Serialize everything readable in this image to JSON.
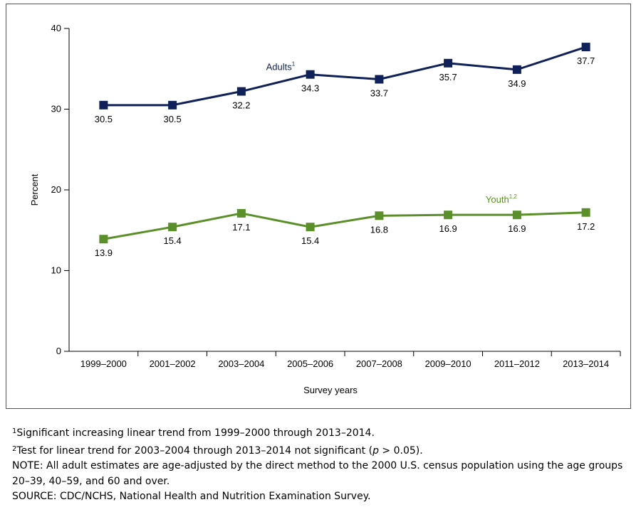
{
  "chart_data": {
    "type": "line",
    "categories": [
      "1999–2000",
      "2001–2002",
      "2003–2004",
      "2005–2006",
      "2007–2008",
      "2009–2010",
      "2011–2012",
      "2013–2014"
    ],
    "series": [
      {
        "name": "Adults",
        "superscript": "1",
        "color": "#0f2158",
        "values": [
          30.5,
          30.5,
          32.2,
          34.3,
          33.7,
          35.7,
          34.9,
          37.7
        ],
        "labels": [
          "30.5",
          "30.5",
          "32.2",
          "34.3",
          "33.7",
          "35.7",
          "34.9",
          "37.7"
        ]
      },
      {
        "name": "Youth",
        "superscript": "1,2",
        "color": "#5a8f29",
        "values": [
          13.9,
          15.4,
          17.1,
          15.4,
          16.8,
          16.9,
          16.9,
          17.2
        ],
        "labels": [
          "13.9",
          "15.4",
          "17.1",
          "15.4",
          "16.8",
          "16.9",
          "16.9",
          "17.2"
        ]
      }
    ],
    "xlabel": "Survey years",
    "ylabel": "Percent",
    "ylim": [
      0,
      40
    ],
    "yticks": [
      "0",
      "10",
      "20",
      "30",
      "40"
    ],
    "grid": false,
    "legend": "inline"
  },
  "footnotes": {
    "fn1_mark": "1",
    "fn1_text": "Significant increasing linear trend from 1999–2000 through 2013–2014.",
    "fn2_mark": "2",
    "fn2_text_before": "Test for linear trend for 2003–2004 through 2013–2014 not significant (",
    "fn2_italic": "p",
    "fn2_text_after": " > 0.05).",
    "note": "NOTE: All adult estimates are age-adjusted by the direct method to the 2000 U.S. census population using the age groups 20–39, 40–59, and 60 and over.",
    "source": "SOURCE: CDC/NCHS, National Health and Nutrition Examination Survey."
  }
}
